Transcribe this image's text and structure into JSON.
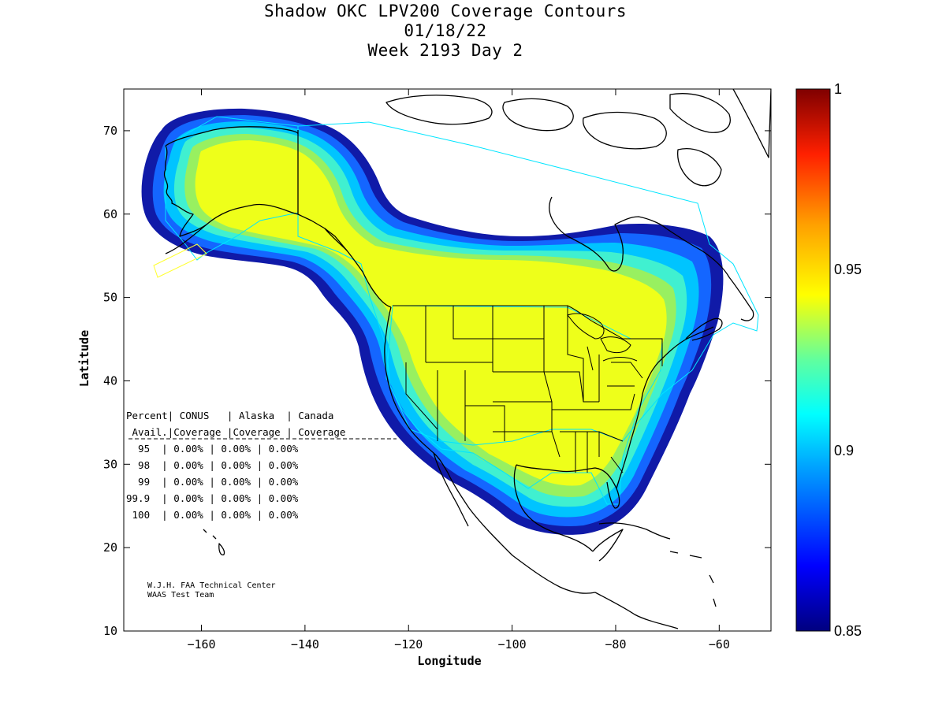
{
  "title": {
    "line1": "Shadow OKC LPV200 Coverage Contours",
    "line2": "01/18/22",
    "line3": "Week 2193 Day 2"
  },
  "map": {
    "lon_range": [
      -175,
      -50
    ],
    "lat_range": [
      10,
      75
    ],
    "x_ticks": [
      -160,
      -140,
      -120,
      -100,
      -80,
      -60
    ],
    "y_ticks": [
      10,
      20,
      30,
      40,
      50,
      60,
      70
    ],
    "xlabel": "Longitude",
    "ylabel": "Latitude"
  },
  "colorbar": {
    "min": 0.85,
    "max": 1,
    "labels": [
      "1",
      "0.95",
      "0.9",
      "0.85"
    ],
    "colors": [
      "#00007f",
      "#0000ff",
      "#00a0ff",
      "#00ffff",
      "#60ff9f",
      "#ffff00",
      "#ffa000",
      "#ff2000",
      "#7f0000"
    ]
  },
  "coverage_colors": {
    "outer": "#1010b0",
    "blue": "#1060ff",
    "cyan": "#00c8ff",
    "aqua": "#40f0d0",
    "green": "#90f060",
    "yellow": "#f0ff20"
  },
  "stats_table": {
    "header1": "Percent| CONUS   | Alaska  | Canada",
    "header2": " Avail.|Coverage |Coverage | Coverage",
    "rows": [
      {
        "pct": "95",
        "conus": "0.00%",
        "alaska": "0.00%",
        "canada": "0.00%"
      },
      {
        "pct": "98",
        "conus": "0.00%",
        "alaska": "0.00%",
        "canada": "0.00%"
      },
      {
        "pct": "99",
        "conus": "0.00%",
        "alaska": "0.00%",
        "canada": "0.00%"
      },
      {
        "pct": "99.9",
        "conus": "0.00%",
        "alaska": "0.00%",
        "canada": "0.00%"
      },
      {
        "pct": "100",
        "conus": "0.00%",
        "alaska": "0.00%",
        "canada": "0.00%"
      }
    ]
  },
  "credit": {
    "line1": "W.J.H. FAA Technical Center",
    "line2": "WAAS Test Team"
  }
}
